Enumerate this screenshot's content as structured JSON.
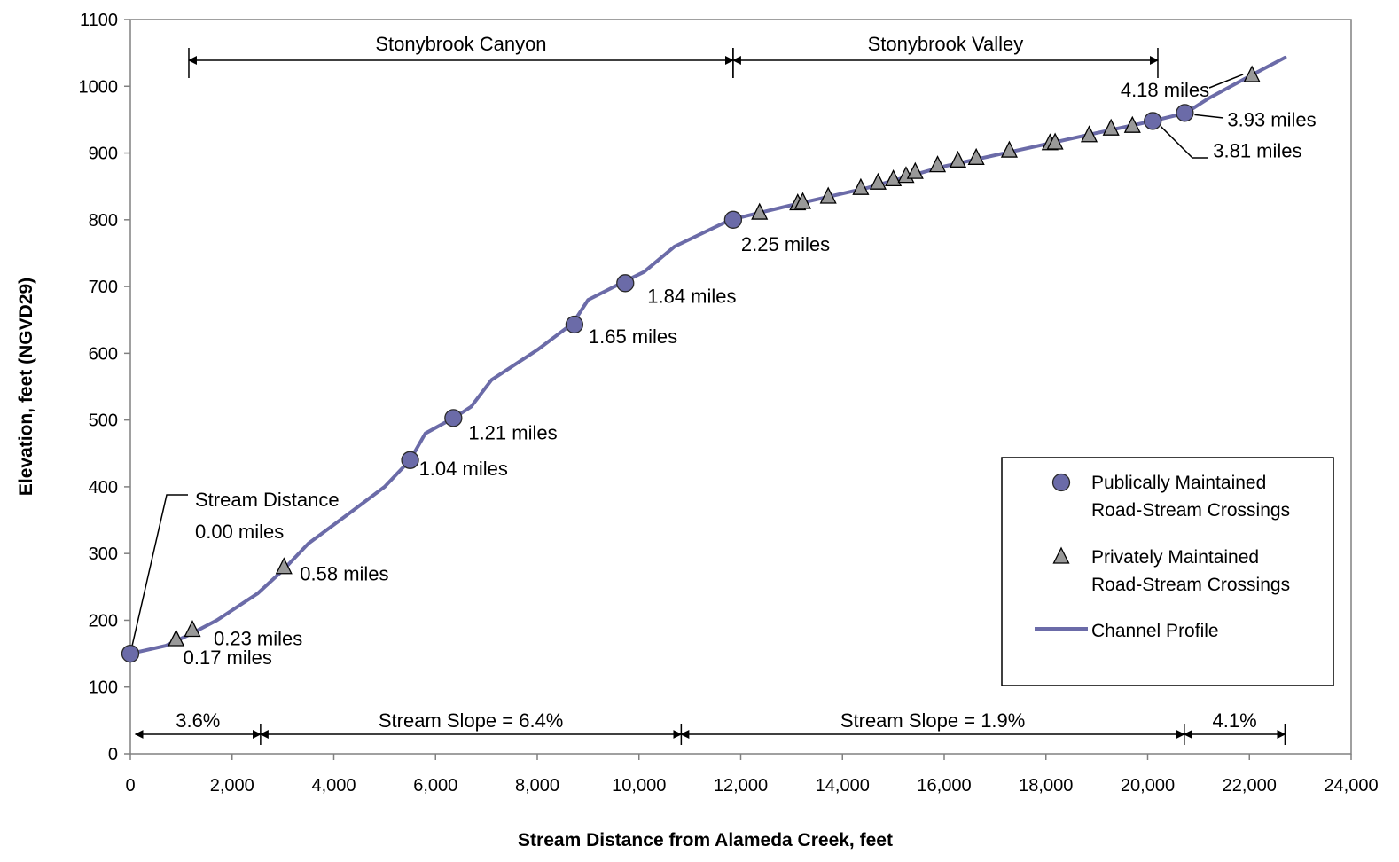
{
  "chart_data": {
    "type": "line",
    "title": "",
    "xlabel": "Stream Distance from Alameda Creek, feet",
    "ylabel": "Elevation, feet (NGVD29)",
    "xlim": [
      0,
      24000
    ],
    "ylim": [
      0,
      1100
    ],
    "x_ticks": [
      0,
      2000,
      4000,
      6000,
      8000,
      10000,
      12000,
      14000,
      16000,
      18000,
      20000,
      22000,
      24000
    ],
    "x_tick_labels": [
      "0",
      "2,000",
      "4,000",
      "6,000",
      "8,000",
      "10,000",
      "12,000",
      "14,000",
      "16,000",
      "18,000",
      "20,000",
      "22,000",
      "24,000"
    ],
    "y_ticks": [
      0,
      100,
      200,
      300,
      400,
      500,
      600,
      700,
      800,
      900,
      1000,
      1100
    ],
    "y_tick_labels": [
      "0",
      "100",
      "200",
      "300",
      "400",
      "500",
      "600",
      "700",
      "800",
      "900",
      "1000",
      "1100"
    ],
    "grid": false,
    "legend_position": "bottom-right",
    "series": [
      {
        "name": "Channel Profile",
        "kind": "line",
        "color": "#6b6ba8",
        "points": [
          [
            0,
            150
          ],
          [
            700,
            162
          ],
          [
            1200,
            180
          ],
          [
            1700,
            200
          ],
          [
            2500,
            240
          ],
          [
            3000,
            275
          ],
          [
            3500,
            315
          ],
          [
            4300,
            360
          ],
          [
            5000,
            400
          ],
          [
            5500,
            440
          ],
          [
            5800,
            480
          ],
          [
            6400,
            505
          ],
          [
            6700,
            520
          ],
          [
            7100,
            560
          ],
          [
            8000,
            605
          ],
          [
            8700,
            645
          ],
          [
            9000,
            680
          ],
          [
            9700,
            707
          ],
          [
            10100,
            722
          ],
          [
            10700,
            760
          ],
          [
            11800,
            800
          ],
          [
            13000,
            822
          ],
          [
            14500,
            848
          ],
          [
            16000,
            880
          ],
          [
            17500,
            905
          ],
          [
            19000,
            930
          ],
          [
            20100,
            948
          ],
          [
            20750,
            960
          ],
          [
            21200,
            982
          ],
          [
            22000,
            1015
          ],
          [
            22700,
            1043
          ]
        ]
      },
      {
        "name": "Publically Maintained Road-Stream Crossings",
        "kind": "circle",
        "color": "#6b6ba8",
        "points": [
          [
            0,
            150
          ],
          [
            5500,
            440
          ],
          [
            6350,
            503
          ],
          [
            8730,
            643
          ],
          [
            9730,
            705
          ],
          [
            11850,
            800
          ],
          [
            20100,
            948
          ],
          [
            20730,
            960
          ]
        ]
      },
      {
        "name": "Privately Maintained Road-Stream Crossings",
        "kind": "triangle",
        "color": "#999999",
        "points": [
          [
            900,
            170
          ],
          [
            1220,
            184
          ],
          [
            3020,
            278
          ],
          [
            12370,
            809
          ],
          [
            13120,
            823
          ],
          [
            13220,
            825
          ],
          [
            13720,
            833
          ],
          [
            14360,
            846
          ],
          [
            14700,
            854
          ],
          [
            15000,
            859
          ],
          [
            15250,
            864
          ],
          [
            15430,
            870
          ],
          [
            15870,
            880
          ],
          [
            16270,
            887
          ],
          [
            16630,
            891
          ],
          [
            17280,
            902
          ],
          [
            18080,
            913
          ],
          [
            18180,
            914
          ],
          [
            18850,
            925
          ],
          [
            19280,
            935
          ],
          [
            19700,
            939
          ],
          [
            22050,
            1015
          ]
        ]
      }
    ],
    "legend": [
      {
        "line1": "Publically Maintained",
        "line2": "Road-Stream Crossings",
        "marker": "circle"
      },
      {
        "line1": "Privately Maintained",
        "line2": "Road-Stream Crossings",
        "marker": "triangle"
      },
      {
        "line1": "Channel Profile",
        "line2": "",
        "marker": "line"
      }
    ],
    "point_labels": [
      {
        "text": "0.17 miles",
        "x": 900,
        "y": 170
      },
      {
        "text": "0.23 miles",
        "x": 1220,
        "y": 184
      },
      {
        "text": "0.58 miles",
        "x": 3020,
        "y": 278
      },
      {
        "text": "1.04 miles",
        "x": 5500,
        "y": 440
      },
      {
        "text": "1.21 miles",
        "x": 6350,
        "y": 503
      },
      {
        "text": "1.65 miles",
        "x": 8730,
        "y": 643
      },
      {
        "text": "1.84 miles",
        "x": 9730,
        "y": 705
      },
      {
        "text": "2.25 miles",
        "x": 11850,
        "y": 800
      },
      {
        "text": "3.81 miles",
        "x": 20100,
        "y": 948
      },
      {
        "text": "3.93 miles",
        "x": 20730,
        "y": 960
      },
      {
        "text": "4.18 miles",
        "x": 22050,
        "y": 1015
      }
    ],
    "start_label": {
      "line1": "Stream Distance",
      "line2": "0.00 miles"
    },
    "reaches": [
      {
        "label": "Stonybrook Canyon",
        "x_start": 1150,
        "x_end": 11850
      },
      {
        "label": "Stonybrook Valley",
        "x_start": 11850,
        "x_end": 20200
      }
    ],
    "slopes": [
      {
        "label": "3.6%",
        "x_start": 100,
        "x_end": 2560
      },
      {
        "label": "Stream Slope = 6.4%",
        "x_start": 2560,
        "x_end": 10830
      },
      {
        "label": "Stream Slope = 1.9%",
        "x_start": 10830,
        "x_end": 20720
      },
      {
        "label": "4.1%",
        "x_start": 20720,
        "x_end": 22700
      }
    ]
  }
}
